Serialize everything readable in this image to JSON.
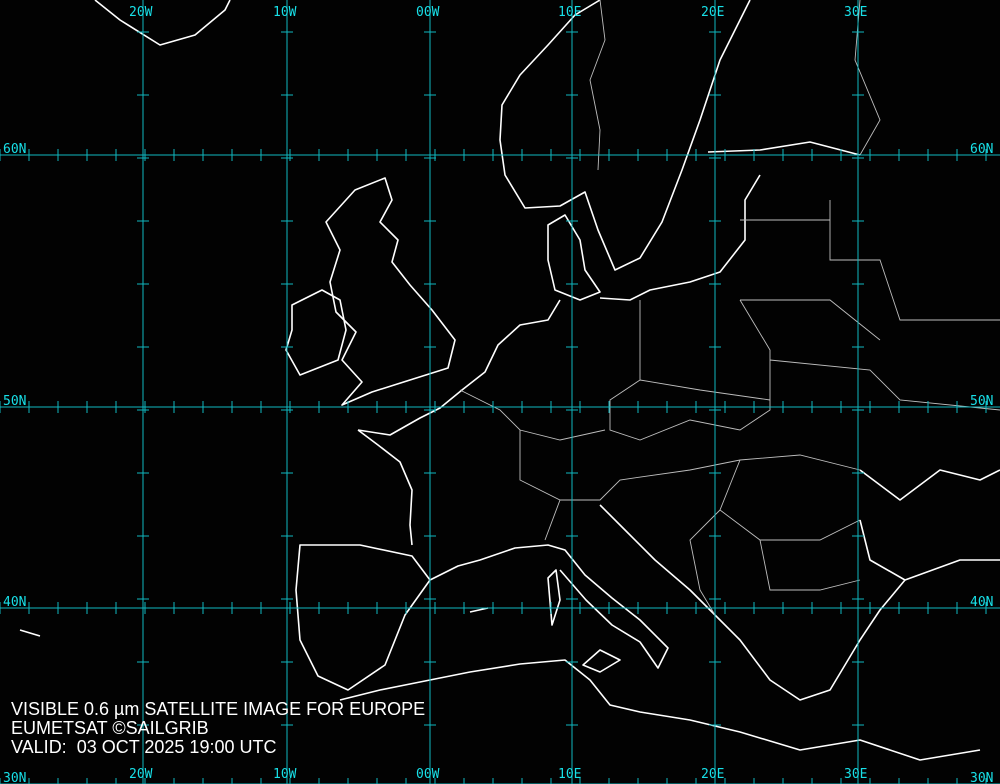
{
  "map": {
    "title": "VISIBLE 0.6 µm SATELLITE IMAGE FOR EUROPE",
    "credit": "EUMETSAT ©SAILGRIB",
    "valid": "VALID:  03 OCT 2025 19:00 UTC",
    "longitude_labels": [
      "20W",
      "10W",
      "00W",
      "10E",
      "20E",
      "30E"
    ],
    "latitude_labels": [
      "60N",
      "50N",
      "40N",
      "30N"
    ],
    "colors": {
      "grid": "#10b8c0",
      "labels": "#18e0e8",
      "coastline": "#ffffff",
      "borders": "#bdbdbd",
      "background": "#020202"
    }
  }
}
